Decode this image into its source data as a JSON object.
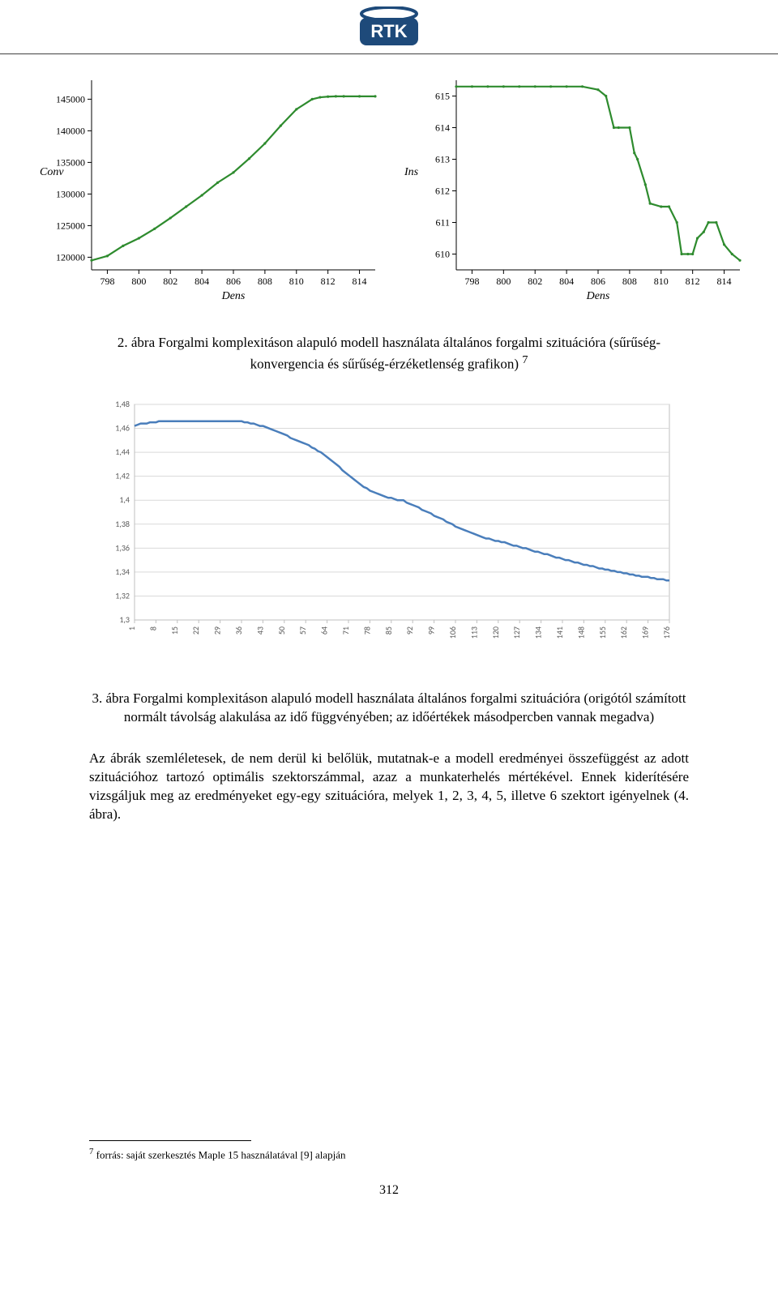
{
  "header": {
    "logo_name": "rtk-logo",
    "logo_colors": {
      "bg": "#1e4a7a",
      "fg": "#ffffff",
      "border": "#1e4a7a"
    }
  },
  "chart_left": {
    "type": "line",
    "xlabel": "Dens",
    "ylabel": "Conv",
    "title_fontsize": 14,
    "label_fontsize": 14,
    "tick_fontsize": 12,
    "xlim": [
      797,
      815
    ],
    "ylim": [
      118000,
      148000
    ],
    "xticks": [
      798,
      800,
      802,
      804,
      806,
      808,
      810,
      812,
      814
    ],
    "yticks": [
      120000,
      125000,
      130000,
      135000,
      140000,
      145000
    ],
    "line_color": "#2e8b2e",
    "line_width": 2.2,
    "marker": "dot",
    "background_color": "#ffffff",
    "axis_color": "#000000",
    "data": [
      [
        797,
        119500
      ],
      [
        798,
        120200
      ],
      [
        799,
        121800
      ],
      [
        800,
        123000
      ],
      [
        801,
        124500
      ],
      [
        802,
        126200
      ],
      [
        803,
        128000
      ],
      [
        804,
        129800
      ],
      [
        805,
        131800
      ],
      [
        806,
        133400
      ],
      [
        807,
        135600
      ],
      [
        808,
        138000
      ],
      [
        809,
        140800
      ],
      [
        810,
        143400
      ],
      [
        811,
        145000
      ],
      [
        811.5,
        145300
      ],
      [
        812,
        145400
      ],
      [
        812.5,
        145450
      ],
      [
        813,
        145450
      ],
      [
        814,
        145450
      ],
      [
        815,
        145450
      ]
    ]
  },
  "chart_right": {
    "type": "line",
    "xlabel": "Dens",
    "ylabel": "Ins",
    "label_fontsize": 14,
    "tick_fontsize": 12,
    "xlim": [
      797,
      815
    ],
    "ylim": [
      609.5,
      615.5
    ],
    "xticks": [
      798,
      800,
      802,
      804,
      806,
      808,
      810,
      812,
      814
    ],
    "yticks": [
      610,
      611,
      612,
      613,
      614,
      615
    ],
    "line_color": "#2e8b2e",
    "line_width": 2.2,
    "marker": "dot",
    "background_color": "#ffffff",
    "axis_color": "#000000",
    "data": [
      [
        797,
        615.3
      ],
      [
        798,
        615.3
      ],
      [
        799,
        615.3
      ],
      [
        800,
        615.3
      ],
      [
        801,
        615.3
      ],
      [
        802,
        615.3
      ],
      [
        803,
        615.3
      ],
      [
        804,
        615.3
      ],
      [
        805,
        615.3
      ],
      [
        806,
        615.2
      ],
      [
        806.5,
        615.0
      ],
      [
        807,
        614.0
      ],
      [
        807.3,
        614.0
      ],
      [
        808,
        614.0
      ],
      [
        808.3,
        613.2
      ],
      [
        808.5,
        613.0
      ],
      [
        809,
        612.2
      ],
      [
        809.3,
        611.6
      ],
      [
        810,
        611.5
      ],
      [
        810.5,
        611.5
      ],
      [
        811,
        611.0
      ],
      [
        811.3,
        610.0
      ],
      [
        811.7,
        610.0
      ],
      [
        812,
        610.0
      ],
      [
        812.3,
        610.5
      ],
      [
        812.7,
        610.7
      ],
      [
        813,
        611.0
      ],
      [
        813.5,
        611.0
      ],
      [
        814,
        610.3
      ],
      [
        814.5,
        610.0
      ],
      [
        815,
        609.8
      ]
    ]
  },
  "caption1": {
    "text": "2. ábra Forgalmi komplexitáson alapuló modell használata általános forgalmi szituációra (sűrűség-konvergencia és sűrűség-érzéketlenség grafikon)",
    "superscript": "7"
  },
  "chart_mid": {
    "type": "line",
    "background_color": "#ffffff",
    "border_color": "#bfbfbf",
    "grid_color": "#d9d9d9",
    "line_color": "#4a7ebb",
    "line_width": 2.5,
    "tick_font": "Calibri",
    "tick_fontsize": 10,
    "tick_color": "#595959",
    "ylim": [
      1.3,
      1.48
    ],
    "yticks": [
      1.3,
      1.32,
      1.34,
      1.36,
      1.38,
      1.4,
      1.42,
      1.44,
      1.46,
      1.48
    ],
    "ytick_labels": [
      "1,3",
      "1,32",
      "1,34",
      "1,36",
      "1,38",
      "1,4",
      "1,42",
      "1,44",
      "1,46",
      "1,48"
    ],
    "xticks_idx": [
      1,
      8,
      15,
      22,
      29,
      36,
      43,
      50,
      57,
      64,
      71,
      78,
      85,
      92,
      99,
      106,
      113,
      120,
      127,
      134,
      141,
      148,
      155,
      162,
      169,
      176
    ],
    "data_y": [
      1.462,
      1.463,
      1.464,
      1.464,
      1.464,
      1.465,
      1.465,
      1.465,
      1.466,
      1.466,
      1.466,
      1.466,
      1.466,
      1.466,
      1.466,
      1.466,
      1.466,
      1.466,
      1.466,
      1.466,
      1.466,
      1.466,
      1.466,
      1.466,
      1.466,
      1.466,
      1.466,
      1.466,
      1.466,
      1.466,
      1.466,
      1.466,
      1.466,
      1.466,
      1.466,
      1.466,
      1.465,
      1.465,
      1.464,
      1.464,
      1.463,
      1.462,
      1.462,
      1.461,
      1.46,
      1.459,
      1.458,
      1.457,
      1.456,
      1.455,
      1.454,
      1.452,
      1.451,
      1.45,
      1.449,
      1.448,
      1.447,
      1.446,
      1.444,
      1.443,
      1.441,
      1.44,
      1.438,
      1.436,
      1.434,
      1.432,
      1.43,
      1.428,
      1.425,
      1.423,
      1.421,
      1.419,
      1.417,
      1.415,
      1.413,
      1.411,
      1.41,
      1.408,
      1.407,
      1.406,
      1.405,
      1.404,
      1.403,
      1.402,
      1.402,
      1.401,
      1.4,
      1.4,
      1.4,
      1.398,
      1.397,
      1.396,
      1.395,
      1.394,
      1.392,
      1.391,
      1.39,
      1.389,
      1.387,
      1.386,
      1.385,
      1.384,
      1.382,
      1.381,
      1.38,
      1.378,
      1.377,
      1.376,
      1.375,
      1.374,
      1.373,
      1.372,
      1.371,
      1.37,
      1.369,
      1.368,
      1.368,
      1.367,
      1.366,
      1.366,
      1.365,
      1.365,
      1.364,
      1.363,
      1.362,
      1.362,
      1.361,
      1.36,
      1.36,
      1.359,
      1.358,
      1.357,
      1.357,
      1.356,
      1.355,
      1.355,
      1.354,
      1.353,
      1.352,
      1.352,
      1.351,
      1.35,
      1.35,
      1.349,
      1.348,
      1.348,
      1.347,
      1.346,
      1.346,
      1.345,
      1.345,
      1.344,
      1.343,
      1.343,
      1.342,
      1.342,
      1.341,
      1.341,
      1.34,
      1.34,
      1.339,
      1.339,
      1.338,
      1.338,
      1.337,
      1.337,
      1.336,
      1.336,
      1.336,
      1.335,
      1.335,
      1.334,
      1.334,
      1.334,
      1.333,
      1.333
    ]
  },
  "caption2": {
    "text": "3. ábra Forgalmi komplexitáson alapuló modell használata általános forgalmi szituációra (origótól számított normált távolság alakulása az idő függvényében; az időértékek másodpercben vannak megadva)"
  },
  "paragraph": {
    "text": "Az ábrák szemléletesek, de nem derül ki belőlük, mutatnak-e a modell eredményei összefüggést az adott szituációhoz tartozó optimális szektorszámmal, azaz a munkaterhelés mértékével. Ennek kiderítésére vizsgáljuk meg az eredményeket egy-egy szituációra, melyek 1, 2, 3, 4, 5, illetve 6 szektort igényelnek (4. ábra)."
  },
  "footnote": {
    "marker": "7",
    "text": " forrás: saját szerkesztés Maple 15 használatával [9] alapján"
  },
  "page_number": "312"
}
